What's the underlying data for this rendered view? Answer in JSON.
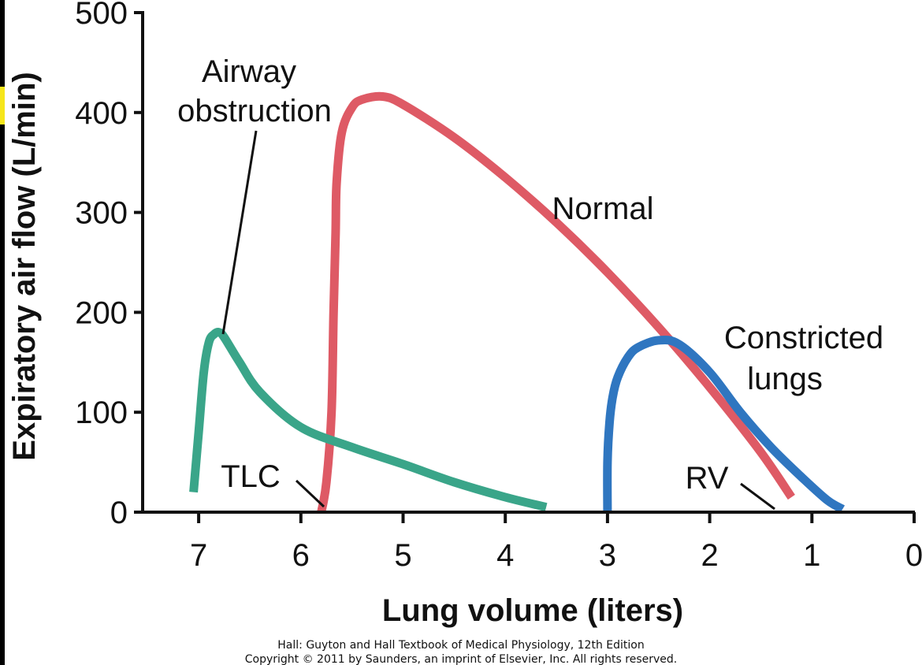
{
  "chart_data": {
    "type": "line",
    "title": "",
    "xlabel": "Lung volume (liters)",
    "ylabel": "Expiratory air flow (L/min)",
    "xlim": [
      7.5,
      0
    ],
    "ylim": [
      0,
      500
    ],
    "x_ticks": [
      "7",
      "6",
      "5",
      "4",
      "3",
      "2",
      "1",
      "0"
    ],
    "y_ticks": [
      "0",
      "100",
      "200",
      "300",
      "400",
      "500"
    ],
    "grid": false,
    "legend": "none",
    "series": [
      {
        "name": "Normal",
        "color": "#de5a65",
        "x": [
          5.8,
          5.75,
          5.7,
          5.68,
          5.66,
          5.65,
          5.6,
          5.5,
          5.4,
          5.2,
          5.0,
          4.5,
          4.0,
          3.5,
          3.0,
          2.5,
          2.0,
          1.5,
          1.2
        ],
        "y": [
          0,
          30,
          100,
          200,
          280,
          330,
          380,
          405,
          413,
          416,
          408,
          375,
          335,
          290,
          240,
          185,
          125,
          60,
          15
        ]
      },
      {
        "name": "Airway obstruction",
        "color": "#3aa589",
        "x": [
          7.05,
          7.0,
          6.95,
          6.9,
          6.85,
          6.8,
          6.75,
          6.6,
          6.4,
          6.0,
          5.5,
          5.0,
          4.5,
          4.0,
          3.6
        ],
        "y": [
          20,
          80,
          140,
          170,
          178,
          180,
          175,
          150,
          120,
          85,
          65,
          48,
          30,
          15,
          5
        ]
      },
      {
        "name": "Constricted lungs",
        "color": "#2f76c0",
        "x": [
          3.0,
          3.0,
          2.98,
          2.95,
          2.9,
          2.8,
          2.7,
          2.5,
          2.3,
          2.0,
          1.7,
          1.4,
          1.1,
          0.85,
          0.7
        ],
        "y": [
          0,
          50,
          90,
          115,
          135,
          155,
          165,
          172,
          168,
          140,
          100,
          65,
          35,
          12,
          3
        ]
      }
    ],
    "annotations": {
      "normal": "Normal",
      "airway_1": "Airway",
      "airway_2": "obstruction",
      "constricted_1": "Constricted",
      "constricted_2": "lungs",
      "tlc": "TLC",
      "rv": "RV"
    }
  },
  "credits": {
    "line1": "Hall: Guyton and Hall Textbook of Medical Physiology, 12th Edition",
    "line2": "Copyright © 2011 by Saunders, an imprint of Elsevier, Inc. All rights reserved."
  }
}
